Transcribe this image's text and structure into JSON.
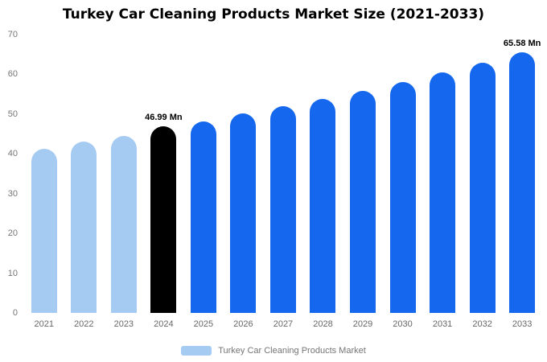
{
  "chart_data": {
    "type": "bar",
    "title": "Turkey Car Cleaning Products Market Size (2021-2033)",
    "categories": [
      "2021",
      "2022",
      "2023",
      "2024",
      "2025",
      "2026",
      "2027",
      "2028",
      "2029",
      "2030",
      "2031",
      "2032",
      "2033"
    ],
    "values": [
      41.2,
      43.0,
      44.6,
      46.99,
      48.2,
      50.1,
      52.0,
      53.9,
      55.9,
      58.0,
      60.4,
      62.9,
      65.58
    ],
    "unit": "Mn",
    "bar_colors": [
      "light",
      "light",
      "light",
      "black",
      "blue",
      "blue",
      "blue",
      "blue",
      "blue",
      "blue",
      "blue",
      "blue",
      "blue"
    ],
    "colors": {
      "light": "#A6CBF2",
      "blue": "#1568ED",
      "black": "#000000"
    },
    "annotations": [
      {
        "index": 3,
        "text": "46.99 Mn"
      },
      {
        "index": 12,
        "text": "65.58 Mn"
      }
    ],
    "ylim": [
      0,
      70
    ],
    "yticks": [
      0,
      10,
      20,
      30,
      40,
      50,
      60,
      70
    ],
    "grid": false,
    "legend_position": "bottom",
    "legend": [
      {
        "label": "Turkey Car Cleaning Products Market",
        "color": "#A6CBF2"
      }
    ]
  }
}
